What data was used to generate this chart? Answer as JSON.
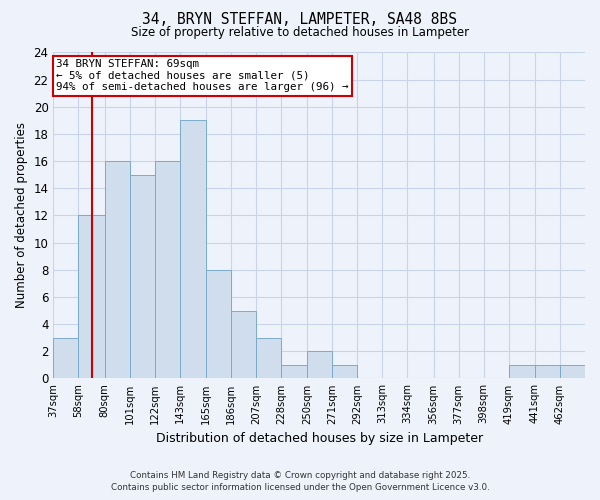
{
  "title": "34, BRYN STEFFAN, LAMPETER, SA48 8BS",
  "subtitle": "Size of property relative to detached houses in Lampeter",
  "xlabel": "Distribution of detached houses by size in Lampeter",
  "ylabel": "Number of detached properties",
  "bin_labels": [
    "37sqm",
    "58sqm",
    "80sqm",
    "101sqm",
    "122sqm",
    "143sqm",
    "165sqm",
    "186sqm",
    "207sqm",
    "228sqm",
    "250sqm",
    "271sqm",
    "292sqm",
    "313sqm",
    "334sqm",
    "356sqm",
    "377sqm",
    "398sqm",
    "419sqm",
    "441sqm",
    "462sqm"
  ],
  "bin_edges": [
    37,
    58,
    80,
    101,
    122,
    143,
    165,
    186,
    207,
    228,
    250,
    271,
    292,
    313,
    334,
    356,
    377,
    398,
    419,
    441,
    462,
    483
  ],
  "counts": [
    3,
    12,
    16,
    15,
    16,
    19,
    8,
    5,
    3,
    1,
    2,
    1,
    0,
    0,
    0,
    0,
    0,
    0,
    1,
    1,
    1
  ],
  "bar_color": "#cfdded",
  "bar_edge_color": "#7aabcc",
  "grid_color": "#c8d4e8",
  "background_color": "#eef2fa",
  "property_line_x": 69,
  "property_line_color": "#cc0000",
  "annotation_line1": "34 BRYN STEFFAN: 69sqm",
  "annotation_line2": "← 5% of detached houses are smaller (5)",
  "annotation_line3": "94% of semi-detached houses are larger (96) →",
  "annotation_box_facecolor": "#ffffff",
  "annotation_box_edgecolor": "#cc0000",
  "ylim": [
    0,
    24
  ],
  "yticks": [
    0,
    2,
    4,
    6,
    8,
    10,
    12,
    14,
    16,
    18,
    20,
    22,
    24
  ],
  "footer_line1": "Contains HM Land Registry data © Crown copyright and database right 2025.",
  "footer_line2": "Contains public sector information licensed under the Open Government Licence v3.0."
}
